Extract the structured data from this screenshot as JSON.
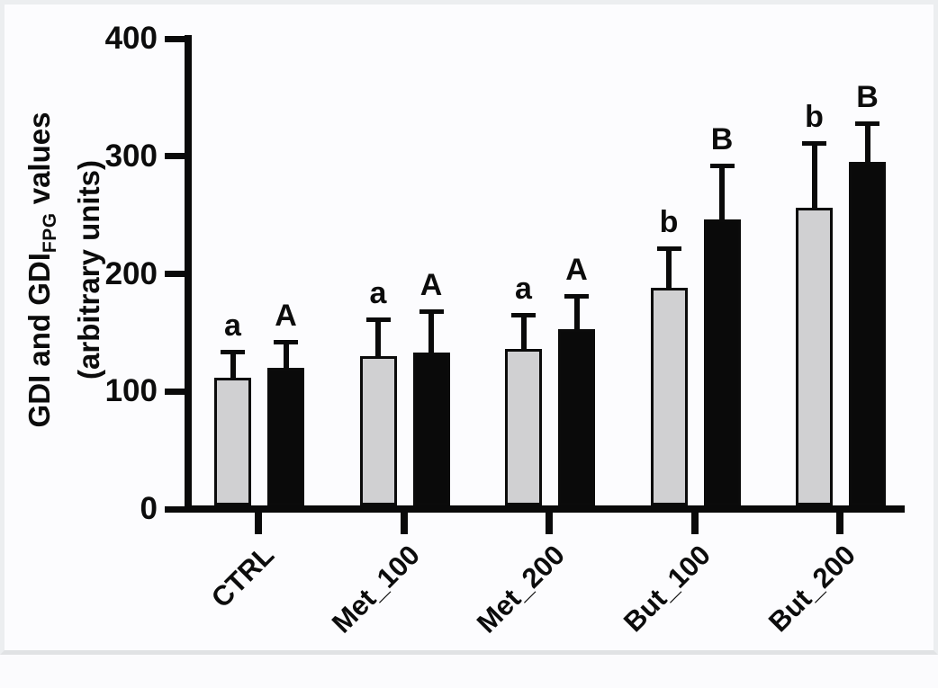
{
  "figure": {
    "ylabel": {
      "prefix": "GDI and GDI",
      "subscript": "FPG",
      "suffix": " values",
      "line2": "(arbitrary units)"
    }
  },
  "chart_data": {
    "type": "bar",
    "title": "",
    "xlabel": "",
    "ylabel": "GDI and GDI_FPG values (arbitrary units)",
    "categories": [
      "CTRL",
      "Met_100",
      "Met_200",
      "But_100",
      "But_200"
    ],
    "series": [
      {
        "name": "GDI",
        "color": "#d0d0d2",
        "values": [
          112,
          130,
          136,
          188,
          256
        ],
        "sd": [
          22,
          31,
          29,
          34,
          55
        ],
        "letters": [
          "a",
          "a",
          "a",
          "b",
          "b"
        ]
      },
      {
        "name": "GDI_FPG",
        "color": "#0a0a0a",
        "values": [
          120,
          133,
          153,
          246,
          295
        ],
        "sd": [
          22,
          35,
          28,
          46,
          33
        ],
        "letters": [
          "A",
          "A",
          "A",
          "B",
          "B"
        ]
      }
    ],
    "y_ticks": [
      0,
      100,
      200,
      300,
      400
    ],
    "ylim": [
      0,
      400
    ],
    "grid": false,
    "legend": "none",
    "error_bars": "upper SD whiskers with caps",
    "annotations": "significance letters above error bars (a/b for gray series, A/B for black series)",
    "axis_color": "#0a0a0a",
    "background": "#fcfcfe"
  }
}
